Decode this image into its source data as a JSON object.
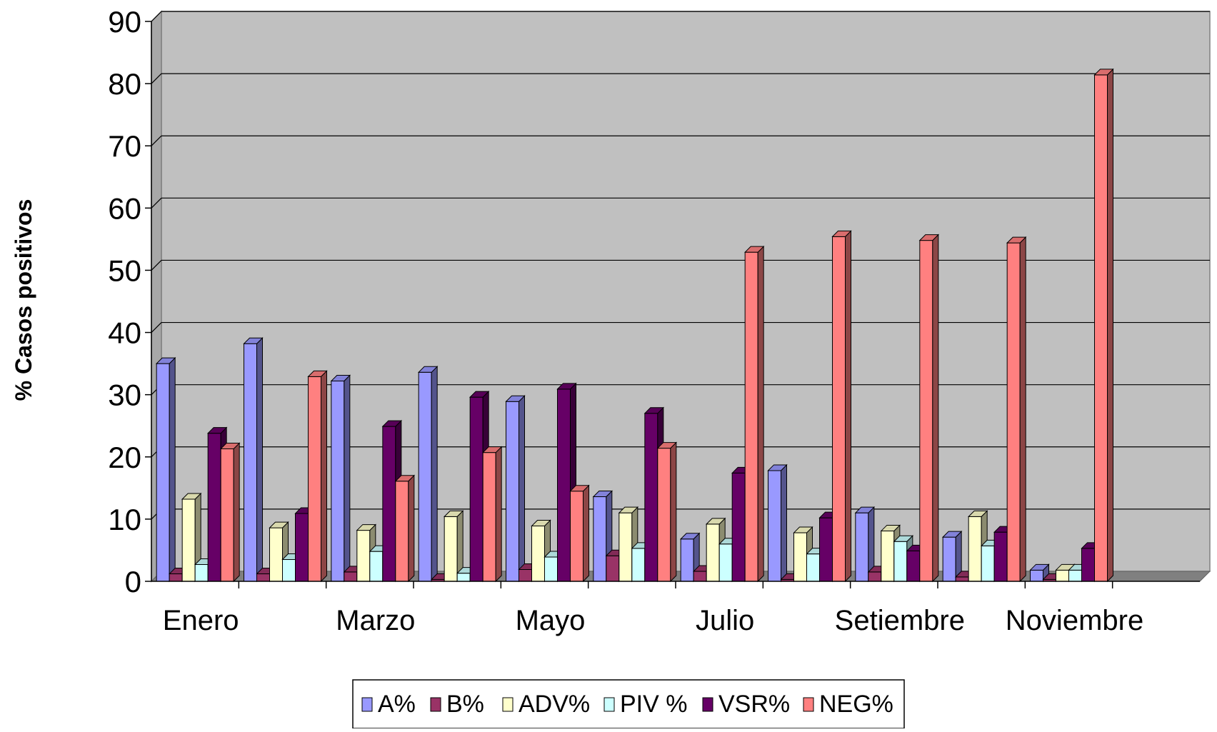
{
  "chart_data": {
    "type": "bar",
    "title": "",
    "xlabel": "",
    "ylabel": "% Casos positivos",
    "ylim": [
      0,
      90
    ],
    "yticks": [
      0,
      10,
      20,
      30,
      40,
      50,
      60,
      70,
      80,
      90
    ],
    "grid": true,
    "legend_position": "bottom",
    "style": "3d-clustered-column",
    "categories": [
      "Enero",
      "",
      "Marzo",
      "",
      "Mayo",
      "",
      "Julio",
      "",
      "Setiembre",
      "",
      "Noviembre",
      ""
    ],
    "category_labels_shown": [
      "Enero",
      "Marzo",
      "Mayo",
      "Julio",
      "Setiembre",
      "Noviembre"
    ],
    "colors": {
      "plot_background": "#c0c0c0",
      "floor": "#808080"
    },
    "series": [
      {
        "name": "A%",
        "color": "#9999ff",
        "values": [
          35,
          38.2,
          32.2,
          33.6,
          28.9,
          13.6,
          6.8,
          17.8,
          11,
          7.1,
          1.8,
          0
        ]
      },
      {
        "name": "B%",
        "color": "#993366",
        "values": [
          1.2,
          1.2,
          1.5,
          0.3,
          1.9,
          4.1,
          1.6,
          0.3,
          1.5,
          0.7,
          0.3,
          0
        ]
      },
      {
        "name": "ADV%",
        "color": "#ffffcc",
        "values": [
          13.2,
          8.6,
          8.2,
          10.4,
          8.9,
          11,
          9.2,
          7.8,
          8.1,
          10.4,
          1.8,
          0
        ]
      },
      {
        "name": "PIV %",
        "color": "#ccffff",
        "values": [
          2.7,
          3.5,
          4.8,
          1.3,
          3.9,
          5.3,
          6,
          4.4,
          6.4,
          5.7,
          1.8,
          0
        ]
      },
      {
        "name": "VSR%",
        "color": "#660066",
        "values": [
          23.8,
          10.9,
          24.9,
          29.6,
          30.9,
          27,
          17.4,
          10.2,
          4.9,
          7.9,
          5.3,
          0
        ]
      },
      {
        "name": "NEG%",
        "color": "#ff8080",
        "values": [
          21.3,
          32.9,
          16.1,
          20.7,
          14.5,
          21.4,
          52.9,
          55.4,
          54.8,
          54.4,
          81.4,
          0
        ]
      }
    ]
  }
}
